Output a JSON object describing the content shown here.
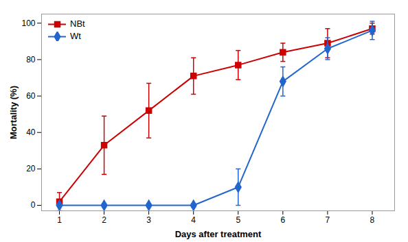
{
  "chart_data": {
    "type": "line",
    "x": [
      1,
      2,
      3,
      4,
      5,
      6,
      7,
      8
    ],
    "xlabel": "Days after treatment",
    "ylabel": "Mortality (%)",
    "xlim": [
      0.6,
      8.5
    ],
    "ylim": [
      -3,
      105
    ],
    "xticks": [
      1,
      2,
      3,
      4,
      5,
      6,
      7,
      8
    ],
    "yticks": [
      0,
      20,
      40,
      60,
      80,
      100
    ],
    "grid": false,
    "legend": "upper left",
    "series": [
      {
        "name": "NBt",
        "color": "#cc0000",
        "marker": "square",
        "values": [
          2,
          33,
          52,
          71,
          77,
          84,
          89,
          97
        ],
        "errors": [
          5,
          16,
          15,
          10,
          8,
          5,
          8,
          3
        ]
      },
      {
        "name": "Wt",
        "color": "#2266cc",
        "marker": "diamond",
        "values": [
          0,
          0,
          0,
          0,
          10,
          68,
          86,
          96
        ],
        "errors": [
          0,
          1,
          1,
          1,
          10,
          8,
          6,
          5
        ]
      }
    ]
  }
}
